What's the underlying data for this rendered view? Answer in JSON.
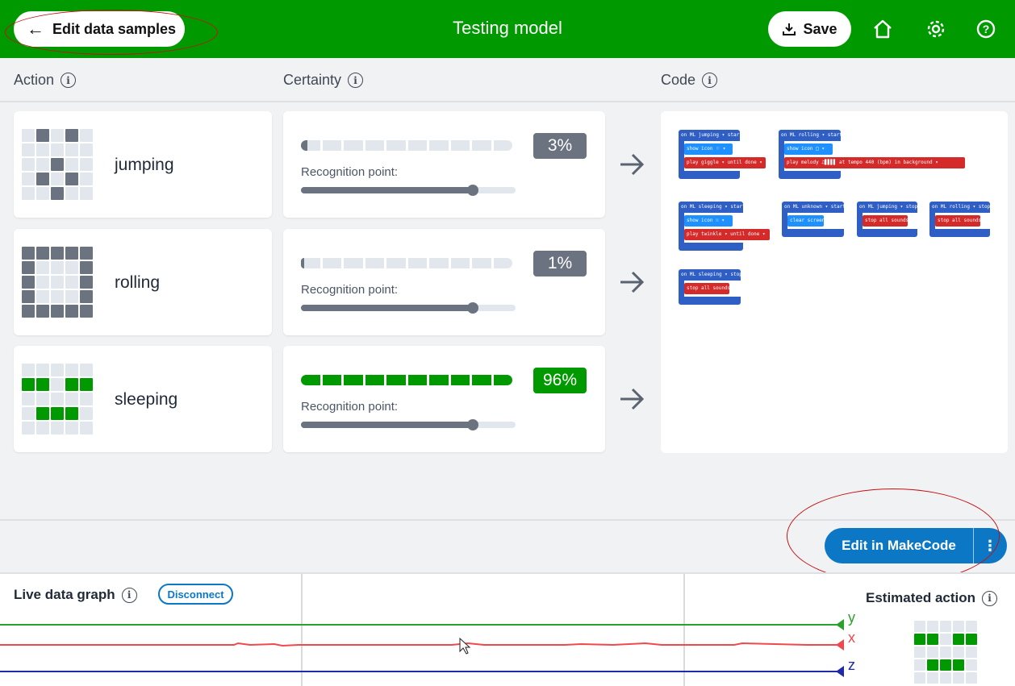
{
  "header": {
    "back_label": "Edit data samples",
    "title": "Testing model",
    "save_label": "Save"
  },
  "columns": {
    "action": "Action",
    "certainty": "Certainty",
    "code": "Code"
  },
  "actions": [
    {
      "name": "jumping",
      "certainty": "3%",
      "certainty_value": 0.03,
      "recognition_label": "Recognition point:",
      "recognition_point": 0.8,
      "pattern": [
        0,
        1,
        0,
        1,
        0,
        0,
        0,
        0,
        0,
        0,
        0,
        0,
        1,
        0,
        0,
        0,
        1,
        0,
        1,
        0,
        0,
        0,
        1,
        0,
        0
      ],
      "color": "#6b7280"
    },
    {
      "name": "rolling",
      "certainty": "1%",
      "certainty_value": 0.01,
      "recognition_label": "Recognition point:",
      "recognition_point": 0.8,
      "pattern": [
        1,
        1,
        1,
        1,
        1,
        1,
        0,
        0,
        0,
        1,
        1,
        0,
        0,
        0,
        1,
        1,
        0,
        0,
        0,
        1,
        1,
        1,
        1,
        1,
        1
      ],
      "color": "#6b7280"
    },
    {
      "name": "sleeping",
      "certainty": "96%",
      "certainty_value": 0.96,
      "recognition_label": "Recognition point:",
      "recognition_point": 0.8,
      "pattern": [
        0,
        0,
        0,
        0,
        0,
        1,
        1,
        0,
        1,
        1,
        0,
        0,
        0,
        0,
        0,
        0,
        1,
        1,
        1,
        0,
        0,
        0,
        0,
        0,
        0
      ],
      "color": "#009a00"
    }
  ],
  "code_blocks": [
    {
      "hat": "on ML  jumping ▾  start",
      "inner": [
        "show icon  ⁙ ▾",
        "play  giggle ▾  until done ▾"
      ]
    },
    {
      "hat": "on ML  rolling ▾  start",
      "inner": [
        "show icon  □ ▾",
        "play  melody  ♫▋▋▋▋  at tempo  440  (bpm)  in background ▾"
      ]
    },
    {
      "hat": "on ML  sleeping ▾  start",
      "inner": [
        "show icon  ∷ ▾",
        "play  twinkle ▾  until done ▾"
      ]
    },
    {
      "hat": "on ML  unknown ▾  start",
      "inner": [
        "clear screen"
      ]
    },
    {
      "hat": "on ML  jumping ▾  stop",
      "inner": [
        "stop all sounds"
      ]
    },
    {
      "hat": "on ML  rolling ▾  stop",
      "inner": [
        "stop all sounds"
      ]
    },
    {
      "hat": "on ML  sleeping ▾  stop",
      "inner": [
        "stop all sounds"
      ]
    }
  ],
  "makecode": {
    "label": "Edit in MakeCode",
    "more": "⋮"
  },
  "graph": {
    "title": "Live data graph",
    "disconnect_label": "Disconnect",
    "estimated_title": "Estimated action",
    "axes": [
      {
        "name": "y",
        "color": "#2ea02e"
      },
      {
        "name": "x",
        "color": "#f0494d"
      },
      {
        "name": "z",
        "color": "#1f2aa8"
      }
    ],
    "estimated_pattern": [
      0,
      0,
      0,
      0,
      0,
      1,
      1,
      0,
      1,
      1,
      0,
      0,
      0,
      0,
      0,
      0,
      1,
      1,
      1,
      0,
      0,
      0,
      0,
      0,
      0
    ]
  },
  "colors": {
    "brand_green": "#009a00",
    "makecode_blue": "#0b77c5",
    "grey": "#6b7280"
  }
}
